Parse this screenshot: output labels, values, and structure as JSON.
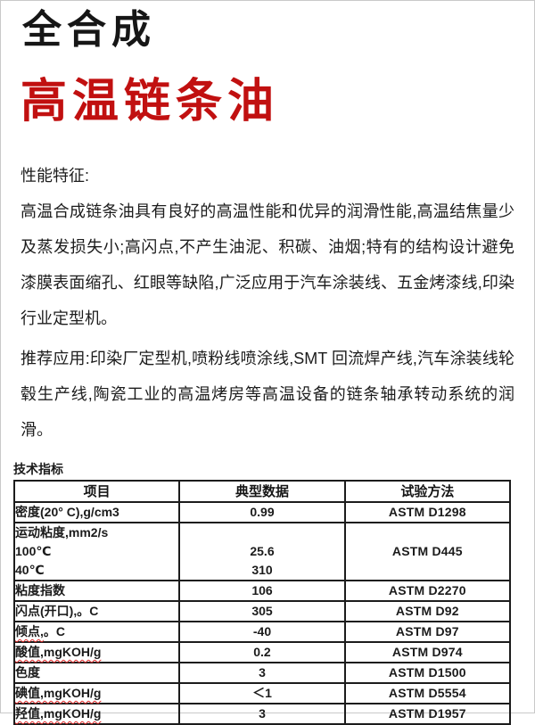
{
  "header": {
    "title_black": "全合成",
    "title_red": "高温链条油"
  },
  "colors": {
    "title_red": "#c11010",
    "spellcheck_red": "#e02b2b"
  },
  "sections": {
    "performance_heading": "性能特征:",
    "performance_text": "高温合成链条油具有良好的高温性能和优异的润滑性能,高温结焦量少及蒸发损失小;高闪点,不产生油泥、积碳、油烟;特有的结构设计避免漆膜表面缩孔、红眼等缺陷,广泛应用于汽车涂装线、五金烤漆线,印染行业定型机。",
    "application_text": "推荐应用:印染厂定型机,喷粉线喷涂线,SMT 回流焊产线,汽车涂装线轮毂生产线,陶瓷工业的高温烤房等高温设备的链条轴承转动系统的润滑。"
  },
  "table": {
    "caption": "技术指标",
    "columns": [
      "项目",
      "典型数据",
      "试验方法"
    ],
    "rows": [
      {
        "lines": [
          {
            "item": "密度(20° C),g/cm3",
            "value": "0.99"
          }
        ],
        "method": "ASTM D1298"
      },
      {
        "lines": [
          {
            "item": "运动粘度,mm2/s",
            "value": ""
          },
          {
            "item": "100℃",
            "value": "25.6"
          },
          {
            "item": "40℃",
            "value": "310"
          }
        ],
        "method": "ASTM D445"
      },
      {
        "lines": [
          {
            "item": "粘度指数",
            "value": "106"
          }
        ],
        "method": "ASTM D2270"
      },
      {
        "lines": [
          {
            "item": "闪点(开口),。C",
            "value": "305"
          }
        ],
        "method": "ASTM D92"
      },
      {
        "lines": [
          {
            "item": "倾点,。C",
            "squiggle": "倾点,",
            "value": "-40"
          }
        ],
        "method": "ASTM D97"
      },
      {
        "lines": [
          {
            "item": "酸值,mgKOH/g",
            "squiggle": "酸值,mgKOH/g",
            "value": "0.2"
          }
        ],
        "method": "ASTM D974"
      },
      {
        "lines": [
          {
            "item": "色度",
            "value": "3"
          }
        ],
        "method": "ASTM D1500"
      },
      {
        "lines": [
          {
            "item": "碘值,mgKOH/g",
            "squiggle": "碘值,mgKOH/g",
            "value": "＜1"
          }
        ],
        "method": "ASTM D5554"
      },
      {
        "lines": [
          {
            "item": "羟值,mgKOH/g",
            "squiggle": "羟值,mgKOH/g",
            "value": "3"
          }
        ],
        "method": "ASTM D1957"
      }
    ]
  }
}
